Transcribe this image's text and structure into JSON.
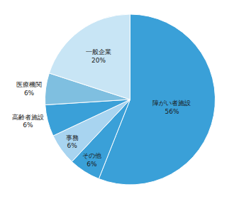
{
  "chart_data": {
    "type": "pie",
    "categories": [
      "障がい者施設",
      "その他",
      "事務",
      "高齢者施設",
      "医療機関",
      "一般企業"
    ],
    "values": [
      56,
      6,
      6,
      6,
      6,
      20
    ],
    "value_labels": [
      "56%",
      "6%",
      "6%",
      "6%",
      "6%",
      "20%"
    ],
    "colors": [
      "#3aa0d8",
      "#3aa0d8",
      "#a8d4f0",
      "#3aa0d8",
      "#7fbfe0",
      "#c8e5f5"
    ],
    "data_labels": true
  }
}
